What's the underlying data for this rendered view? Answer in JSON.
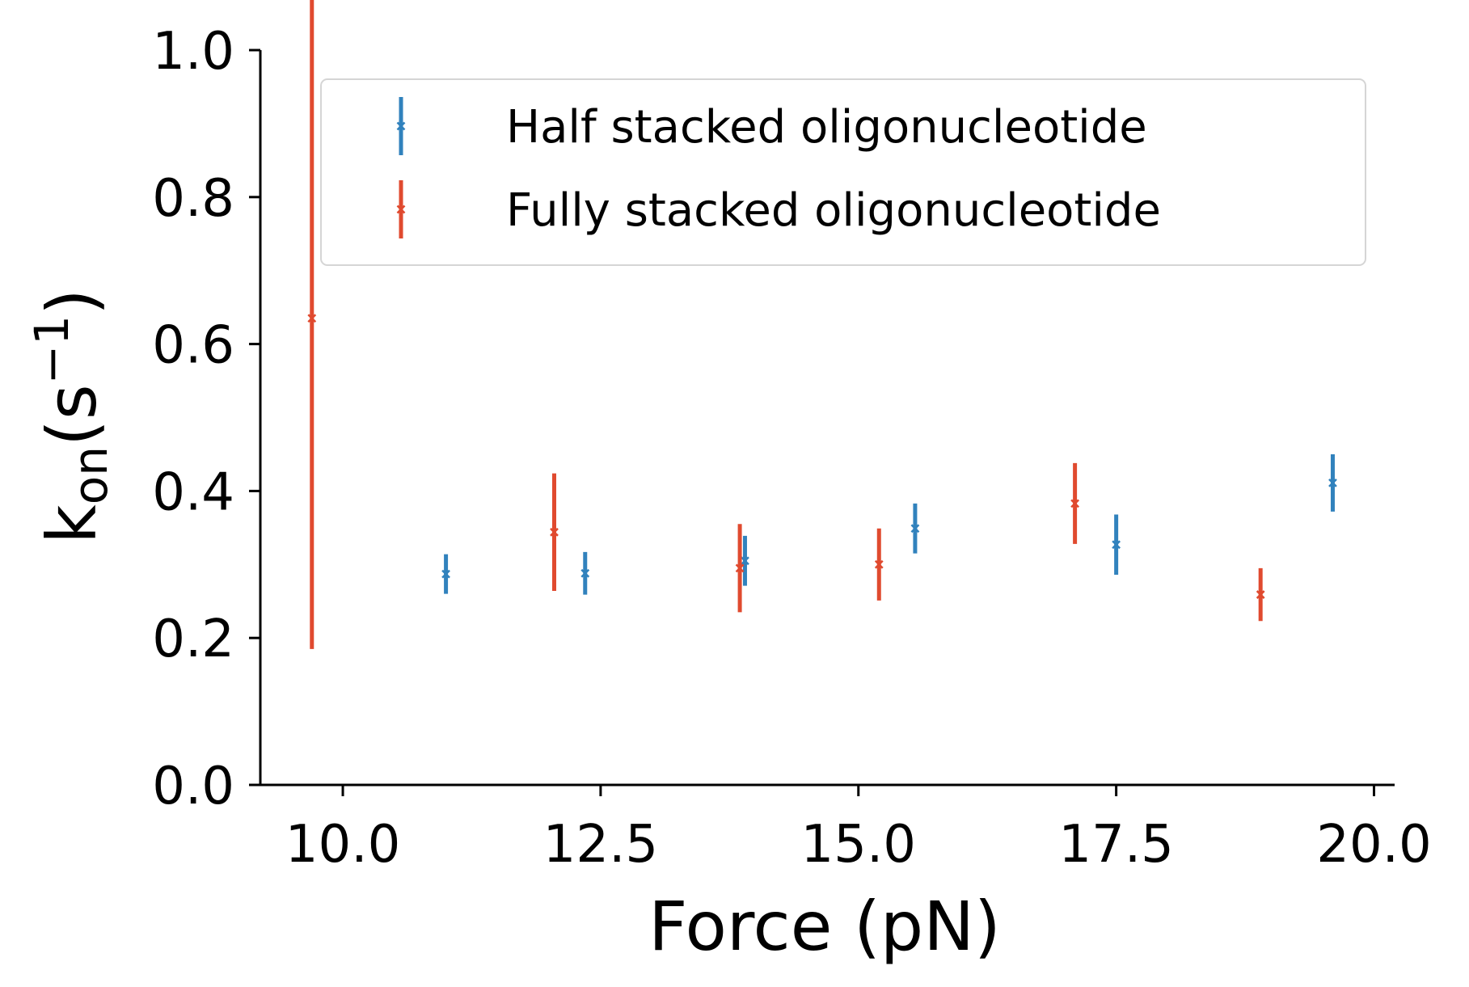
{
  "chart_data": {
    "type": "scatter",
    "title": "",
    "xlabel": "Force (pN)",
    "ylabel": {
      "base": "k",
      "subscript": "on",
      "open": "(s",
      "superscript": "−1",
      "close": ")"
    },
    "xlim": [
      9.2,
      20.2
    ],
    "ylim": [
      0.0,
      1.0
    ],
    "xticks": [
      10.0,
      12.5,
      15.0,
      17.5,
      20.0
    ],
    "xtick_labels": [
      "10.0",
      "12.5",
      "15.0",
      "17.5",
      "20.0"
    ],
    "yticks": [
      0.0,
      0.2,
      0.4,
      0.6,
      0.8,
      1.0
    ],
    "ytick_labels": [
      "0.0",
      "0.2",
      "0.4",
      "0.6",
      "0.8",
      "1.0"
    ],
    "grid": false,
    "legend_position": "top-right",
    "marker": "x",
    "series": [
      {
        "name": "Half stacked oligonucleotide",
        "color": "#3182bd",
        "points": [
          {
            "x": 11.0,
            "y": 0.287,
            "err": 0.027
          },
          {
            "x": 12.35,
            "y": 0.288,
            "err": 0.029
          },
          {
            "x": 13.9,
            "y": 0.305,
            "err": 0.034
          },
          {
            "x": 15.55,
            "y": 0.349,
            "err": 0.034
          },
          {
            "x": 17.5,
            "y": 0.327,
            "err": 0.041
          },
          {
            "x": 19.6,
            "y": 0.411,
            "err": 0.039
          }
        ]
      },
      {
        "name": "Fully stacked oligonucleotide",
        "color": "#e04a2f",
        "points": [
          {
            "x": 9.7,
            "y": 0.635,
            "err": 0.45
          },
          {
            "x": 12.05,
            "y": 0.344,
            "err": 0.08
          },
          {
            "x": 13.85,
            "y": 0.295,
            "err": 0.06
          },
          {
            "x": 15.2,
            "y": 0.3,
            "err": 0.049
          },
          {
            "x": 17.1,
            "y": 0.383,
            "err": 0.055
          },
          {
            "x": 18.9,
            "y": 0.259,
            "err": 0.036
          }
        ]
      }
    ]
  }
}
